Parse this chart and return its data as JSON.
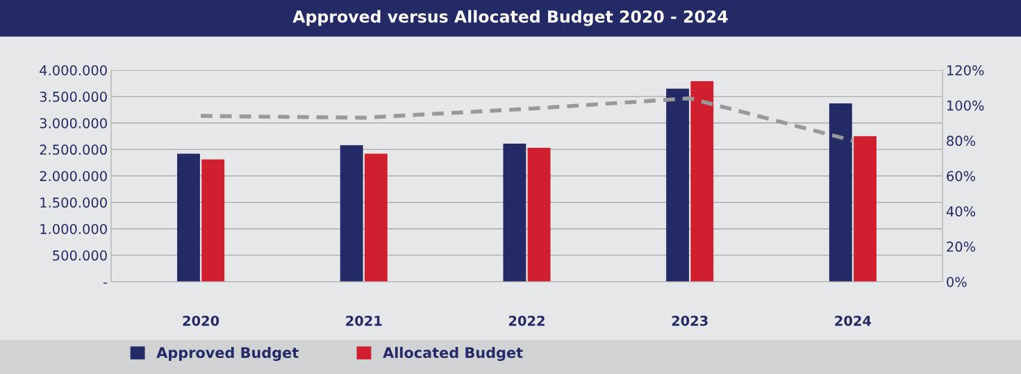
{
  "chart_data": {
    "type": "bar",
    "title": "Approved versus Allocated Budget 2020 - 2024",
    "categories": [
      "2020",
      "2021",
      "2022",
      "2023",
      "2024"
    ],
    "series": [
      {
        "name": "Approved Budget",
        "color": "#232a66",
        "values": [
          2420000,
          2580000,
          2610000,
          3650000,
          3370000
        ]
      },
      {
        "name": "Allocated Budget",
        "color": "#d0202f",
        "values": [
          2310000,
          2420000,
          2530000,
          3790000,
          2750000
        ]
      },
      {
        "type": "line",
        "axis": "y2",
        "color": "#999999",
        "line_style": "dashed",
        "marker": "none",
        "values": [
          94,
          93,
          98,
          104,
          80
        ]
      }
    ],
    "ylim": [
      0,
      4000000
    ],
    "yticks": [
      {
        "value": 0,
        "label": "-"
      },
      {
        "value": 500000,
        "label": "500.000"
      },
      {
        "value": 1000000,
        "label": "1.000.000"
      },
      {
        "value": 1500000,
        "label": "1.500.000"
      },
      {
        "value": 2000000,
        "label": "2.000.000"
      },
      {
        "value": 2500000,
        "label": "2.500.000"
      },
      {
        "value": 3000000,
        "label": "3.000.000"
      },
      {
        "value": 3500000,
        "label": "3.500.000"
      },
      {
        "value": 4000000,
        "label": "4.000.000"
      }
    ],
    "y2lim": [
      0,
      120
    ],
    "y2ticks": [
      {
        "value": 0,
        "label": "0%"
      },
      {
        "value": 20,
        "label": "20%"
      },
      {
        "value": 40,
        "label": "40%"
      },
      {
        "value": 60,
        "label": "60%"
      },
      {
        "value": 80,
        "label": "80%"
      },
      {
        "value": 100,
        "label": "100%"
      },
      {
        "value": 120,
        "label": "120%"
      }
    ],
    "grid": "y",
    "legend": "bottom"
  }
}
